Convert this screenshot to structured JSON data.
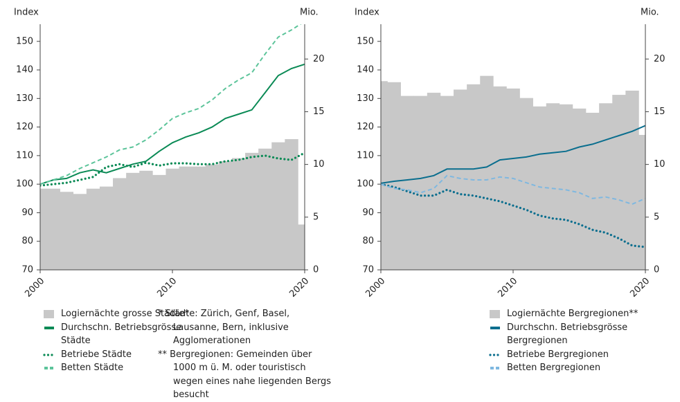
{
  "chart_data": [
    {
      "type": "combo",
      "ylabel": "Index",
      "y2label": "Mio.",
      "x": [
        2000,
        2001,
        2002,
        2003,
        2004,
        2005,
        2006,
        2007,
        2008,
        2009,
        2010,
        2011,
        2012,
        2013,
        2014,
        2015,
        2016,
        2017,
        2018,
        2019,
        2020
      ],
      "xlim": [
        2000,
        2020
      ],
      "xticks": [
        2000,
        2010,
        2020
      ],
      "ylim": [
        70,
        156
      ],
      "yticks": [
        70,
        80,
        90,
        100,
        110,
        120,
        130,
        140,
        150
      ],
      "y2lim": [
        0,
        23.3
      ],
      "y2ticks": [
        0,
        5,
        10,
        15,
        20
      ],
      "series": [
        {
          "name": "Logiernächte grosse Städte*",
          "style": "bar",
          "axis": "y2",
          "color": "#c8c8c8",
          "values": [
            7.7,
            7.7,
            7.4,
            7.2,
            7.7,
            7.9,
            8.7,
            9.2,
            9.4,
            9.0,
            9.6,
            9.8,
            9.8,
            10.0,
            10.3,
            10.6,
            11.1,
            11.5,
            12.1,
            12.4,
            4.3
          ]
        },
        {
          "name": "Durchschn. Betriebsgrösse Städte",
          "style": "solid",
          "color": "#0a8a55",
          "values": [
            100,
            101.5,
            102,
            104,
            105,
            104,
            105.5,
            107,
            108,
            111.5,
            114.5,
            116.5,
            118,
            120,
            123,
            124.5,
            126,
            132,
            138,
            140.5,
            142
          ]
        },
        {
          "name": "Betriebe Städte",
          "style": "dotted",
          "color": "#0a8a55",
          "values": [
            99.5,
            100,
            100.5,
            101.5,
            102.5,
            106,
            107,
            106,
            107.5,
            106.5,
            107.3,
            107.3,
            107,
            107,
            108,
            108.5,
            109.5,
            110,
            109,
            108.5,
            111
          ]
        },
        {
          "name": "Betten Städte",
          "style": "dashed",
          "color": "#5cc49a",
          "values": [
            100,
            101.5,
            103,
            105.5,
            107.5,
            109.5,
            112,
            113,
            115.5,
            119,
            123,
            125,
            126.5,
            129.5,
            133.5,
            136.5,
            139,
            145.5,
            151.5,
            154,
            157
          ]
        }
      ]
    },
    {
      "type": "combo",
      "ylabel": "Index",
      "y2label": "Mio.",
      "x": [
        2000,
        2001,
        2002,
        2003,
        2004,
        2005,
        2006,
        2007,
        2008,
        2009,
        2010,
        2011,
        2012,
        2013,
        2014,
        2015,
        2016,
        2017,
        2018,
        2019,
        2020
      ],
      "xlim": [
        2000,
        2020
      ],
      "xticks": [
        2000,
        2010,
        2020
      ],
      "ylim": [
        70,
        156
      ],
      "yticks": [
        70,
        80,
        90,
        100,
        110,
        120,
        130,
        140,
        150
      ],
      "y2lim": [
        0,
        23.3
      ],
      "y2ticks": [
        0,
        5,
        10,
        15,
        20
      ],
      "series": [
        {
          "name": "Logiernächte Bergregionen**",
          "style": "bar",
          "axis": "y2",
          "color": "#c8c8c8",
          "values": [
            17.9,
            17.8,
            16.5,
            16.5,
            16.8,
            16.5,
            17.1,
            17.6,
            18.4,
            17.4,
            17.2,
            16.3,
            15.5,
            15.8,
            15.7,
            15.3,
            14.9,
            15.8,
            16.6,
            17.0,
            12.8
          ]
        },
        {
          "name": "Durchschn. Betriebsgrösse Bergregionen",
          "style": "solid",
          "color": "#0a6e8e",
          "values": [
            100.3,
            101,
            101.5,
            102,
            103,
            105.3,
            105.3,
            105.3,
            106,
            108.5,
            109,
            109.5,
            110.5,
            111,
            111.5,
            113,
            114,
            115.5,
            117,
            118.5,
            120.5
          ]
        },
        {
          "name": "Betriebe Bergregionen",
          "style": "dotted",
          "color": "#0a6e8e",
          "values": [
            100,
            99,
            97.5,
            96,
            96,
            98,
            96.5,
            96,
            95,
            94,
            92.5,
            91,
            89,
            88,
            87.5,
            86,
            84,
            83,
            81,
            78.5,
            78
          ]
        },
        {
          "name": "Betten Bergregionen",
          "style": "dashed",
          "color": "#7fb8e0",
          "values": [
            100,
            98.5,
            98,
            97,
            98.5,
            103,
            102,
            101.5,
            101.5,
            102.5,
            102,
            100.5,
            99,
            98.5,
            98,
            97,
            95,
            95.5,
            94.5,
            93,
            95
          ]
        }
      ]
    }
  ],
  "notes": [
    "* Städte: Zürich, Genf, Basel, Lausanne, Bern, inklusive Agglomerationen",
    "** Bergregionen: Gemeinden über 1000 m ü. M. oder touristisch wegen eines nahe liegenden Bergs besucht"
  ]
}
